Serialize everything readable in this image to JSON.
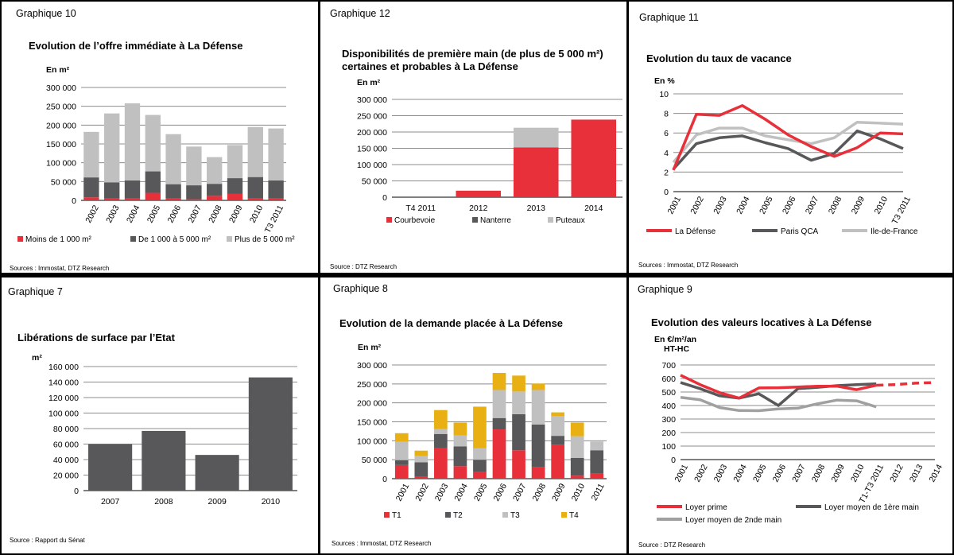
{
  "panels": {
    "g10": {
      "tag": "Graphique 10",
      "title": "Evolution de l’offre immédiate à La Défense",
      "unit": "En m²",
      "source": "Sources : Immostat, DTZ Research"
    },
    "g12": {
      "tag": "Graphique 12",
      "title_line1": "Disponibilités de première main (de plus de 5 000 m²)",
      "title_line2": "certaines et probables à La Défense",
      "unit": "En m²",
      "source": "Source : DTZ Research"
    },
    "g11": {
      "tag": "Graphique 11",
      "title": "Evolution du taux de vacance",
      "unit": "En %",
      "source": "Sources : Immostat, DTZ Research"
    },
    "g7": {
      "tag": "Graphique 7",
      "title": "Libérations de surface par l’Etat",
      "unit": "m²",
      "source": "Source : Rapport du Sénat"
    },
    "g8": {
      "tag": "Graphique 8",
      "title": "Evolution de la demande placée à La Défense",
      "unit": "En m²",
      "source": "Sources : Immostat, DTZ Research"
    },
    "g9": {
      "tag": "Graphique 9",
      "title": "Evolution des valeurs locatives à La Défense",
      "unit_line1": "En €/m²/an",
      "unit_line2": "HT-HC",
      "source": "Source : DTZ Research"
    }
  },
  "chart_data": [
    {
      "id": "g10",
      "type": "bar",
      "stacked": true,
      "categories": [
        "2002",
        "2003",
        "2004",
        "2005",
        "2006",
        "2007",
        "2008",
        "2009",
        "2010",
        "T3 2011"
      ],
      "series": [
        {
          "name": "Moins de 1 000 m²",
          "color": "#e8303a",
          "values": [
            8000,
            5000,
            5000,
            20000,
            5000,
            3000,
            12000,
            17000,
            5000,
            5000
          ]
        },
        {
          "name": "De 1 000 à 5 000 m²",
          "color": "#58585a",
          "values": [
            53000,
            43000,
            48000,
            57000,
            38000,
            37000,
            32000,
            42000,
            57000,
            48000
          ]
        },
        {
          "name": "Plus de  5 000 m²",
          "color": "#c0c0c0",
          "values": [
            121000,
            183000,
            205000,
            150000,
            133000,
            103000,
            71000,
            88000,
            133000,
            138000
          ]
        }
      ],
      "ylim": [
        0,
        300000
      ],
      "yticks": [
        "0",
        "50 000",
        "100 000",
        "150 000",
        "200 000",
        "250 000",
        "300 000"
      ],
      "grid": true,
      "legend": "bottom"
    },
    {
      "id": "g12",
      "type": "bar",
      "stacked": true,
      "categories": [
        "T4 2011",
        "2012",
        "2013",
        "2014"
      ],
      "series": [
        {
          "name": "Courbevoie",
          "color": "#e8303a",
          "values": [
            0,
            20000,
            153000,
            238000
          ]
        },
        {
          "name": "Nanterre",
          "color": "#58585a",
          "values": [
            0,
            0,
            0,
            0
          ]
        },
        {
          "name": "Puteaux",
          "color": "#c0c0c0",
          "values": [
            0,
            0,
            60000,
            0
          ]
        }
      ],
      "ylim": [
        0,
        300000
      ],
      "yticks": [
        "0",
        "50 000",
        "100 000",
        "150 000",
        "200 000",
        "250 000",
        "300 000"
      ],
      "grid": true,
      "legend": "bottom"
    },
    {
      "id": "g11",
      "type": "line",
      "categories": [
        "2001",
        "2002",
        "2003",
        "2004",
        "2005",
        "2006",
        "2007",
        "2008",
        "2009",
        "2010",
        "T3 2011"
      ],
      "series": [
        {
          "name": "La Défense",
          "color": "#e8303a",
          "values": [
            2.2,
            7.9,
            7.8,
            8.8,
            7.4,
            5.8,
            4.6,
            3.6,
            4.5,
            6.0,
            5.9
          ]
        },
        {
          "name": "Paris QCA",
          "color": "#58585a",
          "values": [
            2.3,
            4.9,
            5.5,
            5.7,
            5.0,
            4.4,
            3.2,
            3.9,
            6.2,
            5.4,
            4.4
          ]
        },
        {
          "name": "Ile-de-France",
          "color": "#c0c0c0",
          "values": [
            3.0,
            5.8,
            6.5,
            6.5,
            5.7,
            5.3,
            4.9,
            5.5,
            7.1,
            7.0,
            6.9
          ]
        }
      ],
      "ylim": [
        0,
        10
      ],
      "yticks": [
        "0",
        "2",
        "4",
        "6",
        "8",
        "10"
      ],
      "grid": true,
      "legend": "bottom"
    },
    {
      "id": "g7",
      "type": "bar",
      "categories": [
        "2007",
        "2008",
        "2009",
        "2010"
      ],
      "values": [
        60000,
        77000,
        46000,
        146000
      ],
      "color": "#58585a",
      "ylim": [
        0,
        160000
      ],
      "yticks": [
        "0",
        "20 000",
        "40 000",
        "60 000",
        "80 000",
        "100 000",
        "120 000",
        "140 000",
        "160 000"
      ],
      "grid": true
    },
    {
      "id": "g8",
      "type": "bar",
      "stacked": true,
      "categories": [
        "2001",
        "2002",
        "2003",
        "2004",
        "2005",
        "2006",
        "2007",
        "2008",
        "2009",
        "2010",
        "2011"
      ],
      "series": [
        {
          "name": "T1",
          "color": "#e8303a",
          "values": [
            36000,
            5000,
            80000,
            33000,
            18000,
            130000,
            75000,
            30000,
            90000,
            8000,
            13000
          ]
        },
        {
          "name": "T2",
          "color": "#58585a",
          "values": [
            13000,
            38000,
            38000,
            52000,
            32000,
            30000,
            95000,
            113000,
            23000,
            47000,
            62000
          ]
        },
        {
          "name": "T3",
          "color": "#c0c0c0",
          "values": [
            48000,
            17000,
            13000,
            29000,
            30000,
            74000,
            60000,
            91000,
            52000,
            57000,
            23000
          ]
        },
        {
          "name": "T4",
          "color": "#e8b012",
          "values": [
            23000,
            14000,
            50000,
            34000,
            110000,
            45000,
            42000,
            17000,
            10000,
            36000,
            0
          ]
        }
      ],
      "ylim": [
        0,
        300000
      ],
      "yticks": [
        "0",
        "50 000",
        "100 000",
        "150 000",
        "200 000",
        "250 000",
        "300 000"
      ],
      "grid": true,
      "legend": "bottom"
    },
    {
      "id": "g9",
      "type": "line",
      "categories": [
        "2001",
        "2002",
        "2003",
        "2004",
        "2005",
        "2006",
        "2007",
        "2008",
        "2009",
        "2010",
        "T1-T3 2011",
        "2012",
        "2013",
        "2014"
      ],
      "series": [
        {
          "name": "Loyer prime",
          "color": "#e8303a",
          "values": [
            625,
            555,
            495,
            455,
            530,
            532,
            537,
            543,
            543,
            517,
            550,
            555,
            565,
            570
          ],
          "dashed_from": "T1-T3 2011"
        },
        {
          "name": "Loyer moyen de 1ère main",
          "color": "#58585a",
          "values": [
            570,
            525,
            472,
            455,
            487,
            400,
            525,
            535,
            547,
            555,
            560,
            null,
            null,
            null
          ]
        },
        {
          "name": "Loyer moyen de 2nde main",
          "color": "#a0a0a0",
          "values": [
            460,
            443,
            385,
            363,
            362,
            375,
            380,
            413,
            440,
            435,
            390,
            null,
            null,
            null
          ]
        }
      ],
      "ylim": [
        0,
        700
      ],
      "yticks": [
        "0",
        "100",
        "200",
        "300",
        "400",
        "500",
        "600",
        "700"
      ],
      "grid": true,
      "legend": "bottom"
    }
  ]
}
